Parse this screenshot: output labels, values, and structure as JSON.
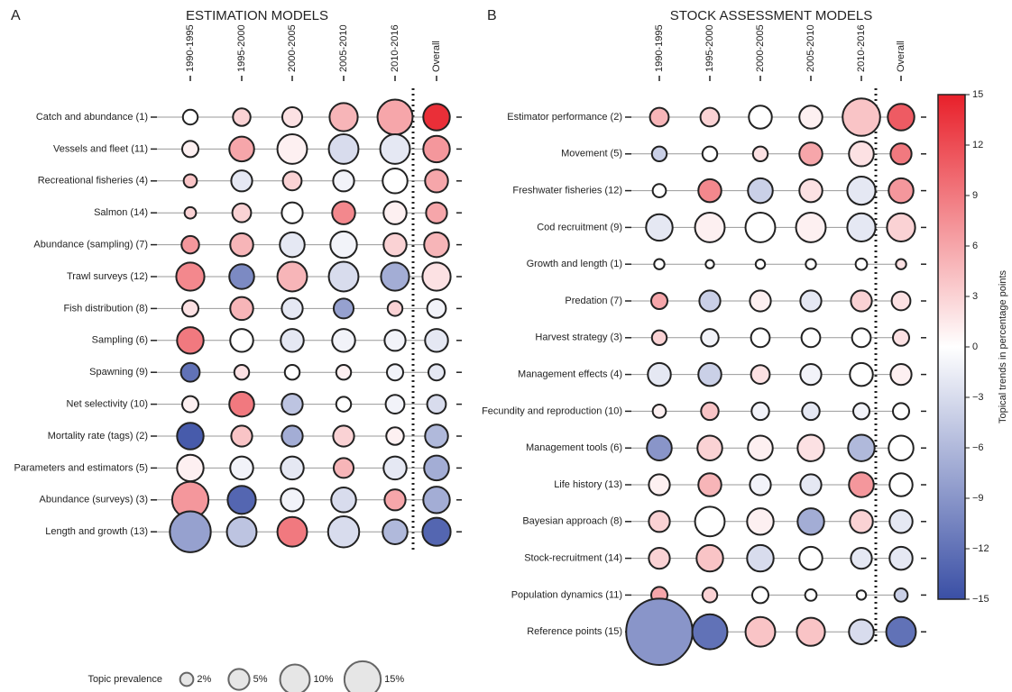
{
  "chart_data": [
    {
      "type": "bubble",
      "panel_label": "A",
      "title": "ESTIMATION MODELS",
      "columns": [
        "1990-1995",
        "1995-2000",
        "2000-2005",
        "2005-2010",
        "2010-2016",
        "Overall"
      ],
      "categories": [
        "Catch and abundance (1)",
        "Vessels and fleet (11)",
        "Recreational fisheries (4)",
        "Salmon (14)",
        "Abundance (sampling) (7)",
        "Trawl surveys (12)",
        "Fish distribution (8)",
        "Sampling (6)",
        "Spawning (9)",
        "Net selectivity (10)",
        "Mortality rate (tags) (2)",
        "Parameters and estimators (5)",
        "Abundance (surveys) (3)",
        "Length and growth (13)"
      ],
      "sizes": [
        [
          2.5,
          3.5,
          4.5,
          9,
          14,
          8
        ],
        [
          3,
          7,
          10,
          10,
          10,
          8
        ],
        [
          2,
          5,
          4,
          5,
          7,
          6
        ],
        [
          1.5,
          4,
          5,
          6,
          6,
          5
        ],
        [
          3.5,
          6,
          7,
          8,
          6,
          7
        ],
        [
          9,
          7,
          10,
          10,
          9,
          9
        ],
        [
          3,
          6,
          5,
          4.5,
          2.5,
          4
        ],
        [
          8,
          6,
          6,
          6,
          5,
          6
        ],
        [
          4,
          2.5,
          2.5,
          2.5,
          3,
          3
        ],
        [
          3,
          7,
          5,
          2.5,
          4,
          4
        ],
        [
          8,
          5,
          5,
          5,
          3.5,
          6
        ],
        [
          8,
          6,
          6,
          4.5,
          6,
          7
        ],
        [
          15,
          9,
          6,
          7,
          5,
          8
        ],
        [
          19,
          10,
          10,
          11,
          7,
          9
        ]
      ],
      "values": [
        [
          0,
          3,
          2,
          5,
          6,
          14
        ],
        [
          1,
          6,
          1,
          -3,
          -2,
          7
        ],
        [
          4,
          -2,
          3,
          -1,
          0,
          6
        ],
        [
          3,
          3,
          0,
          8,
          1,
          6
        ],
        [
          7,
          5,
          -2,
          -1,
          3,
          5
        ],
        [
          8,
          -10,
          5,
          -3,
          -7,
          2
        ],
        [
          2,
          5,
          -2,
          -8,
          3,
          -1
        ],
        [
          9,
          0,
          -2,
          -1,
          -1,
          -2
        ],
        [
          -12,
          2,
          0,
          1,
          -1,
          -2
        ],
        [
          1,
          9,
          -5,
          0,
          -1,
          -3
        ],
        [
          -14,
          4,
          -7,
          3,
          1,
          -6
        ],
        [
          1,
          -1,
          -2,
          5,
          -2,
          -7
        ],
        [
          7,
          -13,
          -1,
          -3,
          6,
          -7
        ],
        [
          -8,
          -5,
          9,
          -3,
          -6,
          -13
        ]
      ],
      "size_legend": {
        "title": "Topic prevalence",
        "values": [
          2,
          5,
          10,
          15
        ],
        "value_labels": [
          "2%",
          "5%",
          "10%",
          "15%"
        ]
      }
    },
    {
      "type": "bubble",
      "panel_label": "B",
      "title": "STOCK ASSESSMENT MODELS",
      "columns": [
        "1990-1995",
        "1995-2000",
        "2000-2005",
        "2005-2010",
        "2010-2016",
        "Overall"
      ],
      "categories": [
        "Estimator performance (2)",
        "Movement (5)",
        "Freshwater fisheries (12)",
        "Cod recruitment (9)",
        "Growth and length (1)",
        "Predation (7)",
        "Harvest strategy (3)",
        "Management effects (4)",
        "Fecundity and reproduction (10)",
        "Management tools (6)",
        "Life history (13)",
        "Bayesian approach (8)",
        "Stock-recruitment (14)",
        "Population dynamics (11)",
        "Reference points (15)"
      ],
      "sizes": [
        [
          4,
          4,
          6,
          6,
          16,
          8
        ],
        [
          2.5,
          2.5,
          2.5,
          6,
          7,
          5
        ],
        [
          2,
          6,
          7,
          6,
          9,
          7
        ],
        [
          8,
          10,
          10,
          10,
          9,
          9
        ],
        [
          1.2,
          0.8,
          1,
          1.2,
          1.5,
          1.2
        ],
        [
          3,
          5,
          5,
          5,
          5,
          4
        ],
        [
          2.5,
          3.5,
          4,
          4,
          4,
          3
        ],
        [
          6,
          6,
          4,
          5,
          6,
          5
        ],
        [
          2,
          3.5,
          3.5,
          3.5,
          3,
          3
        ],
        [
          7,
          7,
          7,
          8,
          8,
          7
        ],
        [
          5,
          6,
          5,
          5,
          7,
          6
        ],
        [
          5,
          10,
          8,
          8,
          6,
          6
        ],
        [
          5,
          8,
          8,
          6,
          5,
          6
        ],
        [
          3,
          2.5,
          3,
          1.5,
          1,
          2
        ],
        [
          50,
          14,
          10,
          9,
          7,
          10
        ]
      ],
      "values": [
        [
          5,
          3,
          0,
          1,
          4,
          11
        ],
        [
          -4,
          0,
          2,
          6,
          2,
          9
        ],
        [
          0,
          8,
          -4,
          2,
          -2,
          7
        ],
        [
          -2,
          1,
          0,
          1,
          -2,
          3
        ],
        [
          0,
          0,
          0,
          0,
          0,
          2
        ],
        [
          6,
          -4,
          1,
          -2,
          3,
          2
        ],
        [
          3,
          -1,
          0,
          0,
          0,
          2
        ],
        [
          -2,
          -4,
          2,
          -1,
          0,
          1
        ],
        [
          1,
          4,
          -1,
          -2,
          -1,
          0
        ],
        [
          -9,
          3,
          1,
          2,
          -6,
          0
        ],
        [
          1,
          5,
          -1,
          -2,
          7,
          0
        ],
        [
          3,
          0,
          1,
          -7,
          3,
          -2
        ],
        [
          3,
          4,
          -3,
          0,
          -2,
          -2
        ],
        [
          6,
          3,
          0,
          0,
          0,
          -4
        ],
        [
          -9,
          -12,
          4,
          4,
          -3,
          -12
        ]
      ],
      "colorbar": {
        "label": "Topical trends in percentage points",
        "lim": [
          -15,
          15
        ],
        "ticks": [
          15,
          12,
          9,
          6,
          3,
          0,
          {
            "value": -3,
            "label": "−3"
          },
          {
            "value": -6,
            "label": "−6"
          },
          {
            "value": -9,
            "label": "−9"
          },
          {
            "value": -12,
            "label": "−12"
          },
          {
            "value": -15,
            "label": "−15"
          }
        ]
      }
    }
  ]
}
